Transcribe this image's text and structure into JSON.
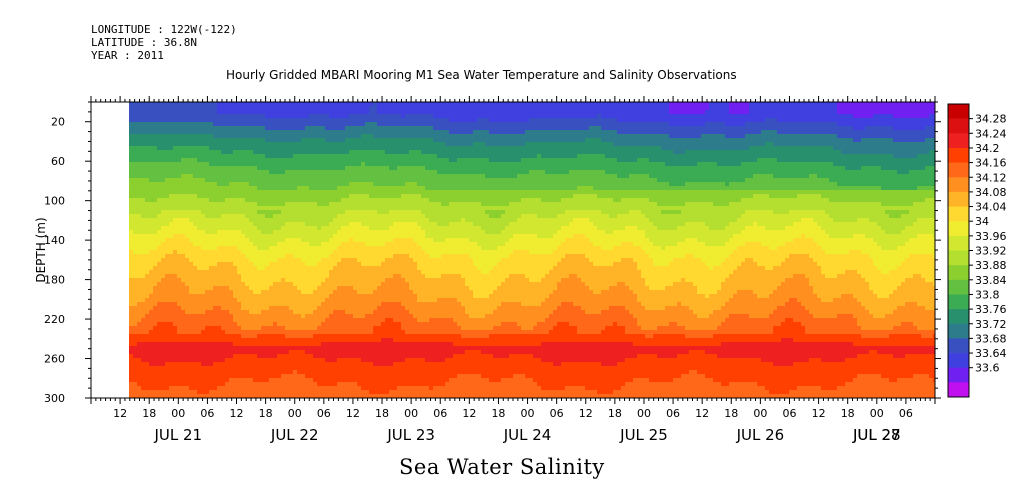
{
  "header": {
    "longitude": "LONGITUDE : 122W(-122)",
    "latitude": "LATITUDE : 36.8N",
    "year": "YEAR : 2011"
  },
  "chart_data": {
    "type": "heatmap",
    "title": "Hourly Gridded MBARI Mooring M1 Sea Water Temperature and Salinity Observations",
    "variable_title": "Sea Water Salinity",
    "ylabel": "DEPTH (m)",
    "ylim": [
      300,
      0
    ],
    "y_ticks": [
      20,
      60,
      100,
      140,
      180,
      220,
      260,
      300
    ],
    "x_hour_labels": [
      "12",
      "18",
      "00",
      "06",
      "12",
      "18",
      "00",
      "06",
      "12",
      "18",
      "00",
      "06",
      "12",
      "18",
      "00",
      "06",
      "12",
      "18",
      "00",
      "06",
      "12",
      "18",
      "00",
      "06",
      "12",
      "18",
      "00",
      "06"
    ],
    "x_day_labels": [
      "JUL 21",
      "JUL 22",
      "JUL 23",
      "JUL 24",
      "JUL 25",
      "JUL 26",
      "JUL 27",
      "JUL 28"
    ],
    "x_range_hours": {
      "start_label": "JUL 21 06",
      "end_label": "JUL 28 12"
    },
    "data_start_label": "JUL 21 15",
    "colorbar": {
      "levels": [
        34.28,
        34.24,
        34.2,
        34.16,
        34.12,
        34.08,
        34.04,
        34,
        33.96,
        33.92,
        33.88,
        33.84,
        33.8,
        33.76,
        33.72,
        33.68,
        33.64,
        33.6
      ],
      "colors": [
        "#c80000",
        "#dc1010",
        "#ee2020",
        "#ff4000",
        "#ff6818",
        "#ff9020",
        "#ffb428",
        "#ffd830",
        "#f0ec30",
        "#d2e830",
        "#b4de30",
        "#8cd030",
        "#64c040",
        "#3cac54",
        "#28906c",
        "#2c7c8c",
        "#3850c0",
        "#4040e0",
        "#7020f0",
        "#c010f0"
      ]
    },
    "depth_profile_typical": [
      {
        "depth": 10,
        "salinity": 33.68
      },
      {
        "depth": 40,
        "salinity": 33.78
      },
      {
        "depth": 70,
        "salinity": 33.86
      },
      {
        "depth": 100,
        "salinity": 33.92
      },
      {
        "depth": 130,
        "salinity": 33.99
      },
      {
        "depth": 160,
        "salinity": 34.06
      },
      {
        "depth": 200,
        "salinity": 34.12
      },
      {
        "depth": 230,
        "salinity": 34.18
      },
      {
        "depth": 250,
        "salinity": 34.26
      },
      {
        "depth": 270,
        "salinity": 34.22
      },
      {
        "depth": 300,
        "salinity": 34.18
      }
    ]
  }
}
